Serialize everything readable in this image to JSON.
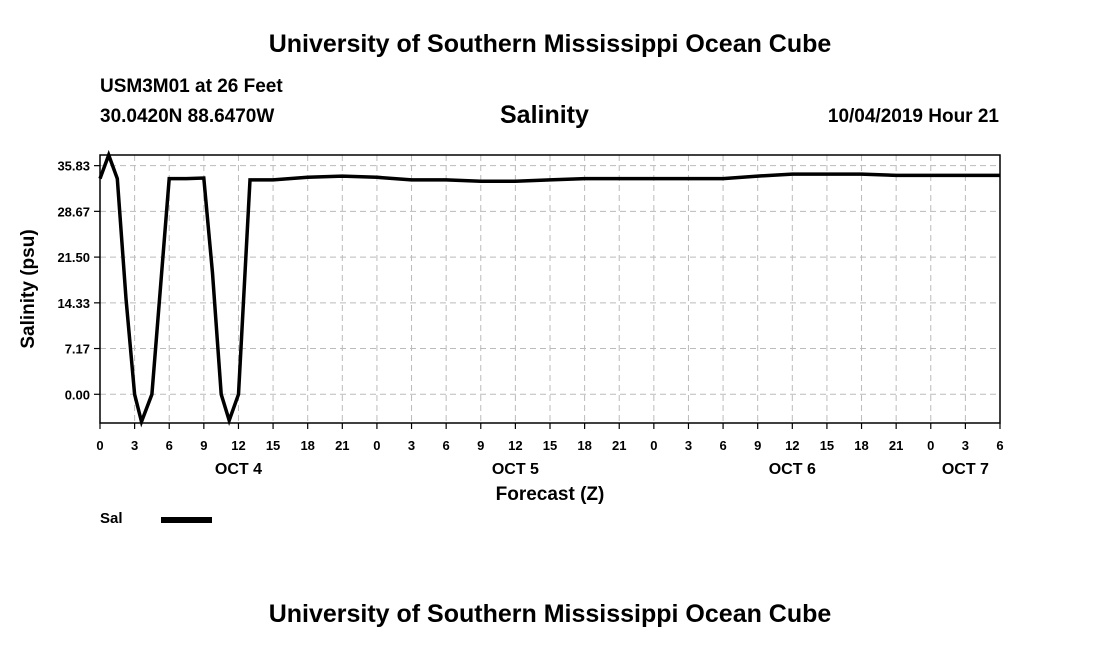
{
  "header": {
    "title": "University of Southern Mississippi Ocean Cube",
    "station": "USM3M01 at 26 Feet",
    "coords": "30.0420N 88.6470W",
    "variable": "Salinity",
    "datetime": "10/04/2019 Hour 21"
  },
  "footer": {
    "title": "University of Southern Mississippi Ocean Cube"
  },
  "legend": {
    "label": "Sal",
    "color": "#000000"
  },
  "chart_data": {
    "type": "line",
    "xlabel": "Forecast (Z)",
    "ylabel": "Salinity (psu)",
    "xlim": [
      0,
      78
    ],
    "ylim": [
      -4.5,
      37.5
    ],
    "y_ticks": [
      "0.00",
      "7.17",
      "14.33",
      "21.50",
      "28.67",
      "35.83"
    ],
    "x_tick_labels": [
      "0",
      "3",
      "6",
      "9",
      "12",
      "15",
      "18",
      "21",
      "0",
      "3",
      "6",
      "9",
      "12",
      "15",
      "18",
      "21",
      "0",
      "3",
      "6",
      "9",
      "12",
      "15",
      "18",
      "21",
      "0",
      "3",
      "6"
    ],
    "date_labels": [
      {
        "hour": 12,
        "label": "OCT 4"
      },
      {
        "hour": 36,
        "label": "OCT 5"
      },
      {
        "hour": 60,
        "label": "OCT 6"
      },
      {
        "hour": 75,
        "label": "OCT 7"
      }
    ],
    "grid": true,
    "series": [
      {
        "name": "Sal",
        "x": [
          0,
          0.75,
          1.5,
          2.25,
          3,
          3.6,
          4.5,
          5.25,
          6,
          7.5,
          9,
          9.75,
          10.5,
          11.2,
          12,
          13,
          15,
          18,
          21,
          24,
          27,
          30,
          33,
          36,
          39,
          42,
          45,
          48,
          51,
          54,
          57,
          60,
          63,
          66,
          69,
          72,
          75,
          78
        ],
        "y": [
          33.8,
          37.5,
          33.8,
          15.0,
          0.0,
          -4.3,
          0.0,
          17.0,
          33.8,
          33.8,
          33.9,
          19.0,
          0.0,
          -4.1,
          0.0,
          33.6,
          33.6,
          34.0,
          34.2,
          34.0,
          33.6,
          33.6,
          33.4,
          33.4,
          33.6,
          33.8,
          33.8,
          33.8,
          33.8,
          33.8,
          34.2,
          34.5,
          34.5,
          34.5,
          34.3,
          34.3,
          34.3,
          34.3
        ]
      }
    ]
  }
}
